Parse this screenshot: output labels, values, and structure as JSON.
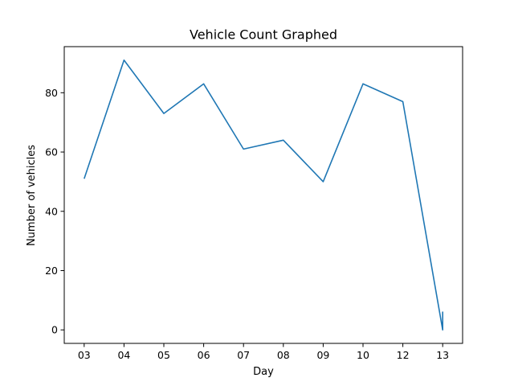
{
  "chart_data": {
    "type": "line",
    "title": "Vehicle Count Graphed",
    "xlabel": "Day",
    "ylabel": "Number of vehicles",
    "categories": [
      "03",
      "04",
      "05",
      "06",
      "07",
      "08",
      "09",
      "10",
      "12",
      "13"
    ],
    "series": [
      {
        "x": [
          "03",
          "04",
          "05",
          "06",
          "07",
          "08",
          "09",
          "10",
          "12",
          "13",
          "13",
          "13"
        ],
        "values": [
          51,
          91,
          73,
          83,
          61,
          64,
          50,
          83,
          77,
          0,
          6,
          0
        ],
        "color": "#1f77b4"
      }
    ],
    "yticks": [
      0,
      20,
      40,
      60,
      80
    ],
    "ylim": [
      -4.55,
      95.55
    ],
    "grid": false,
    "legend": "none"
  }
}
